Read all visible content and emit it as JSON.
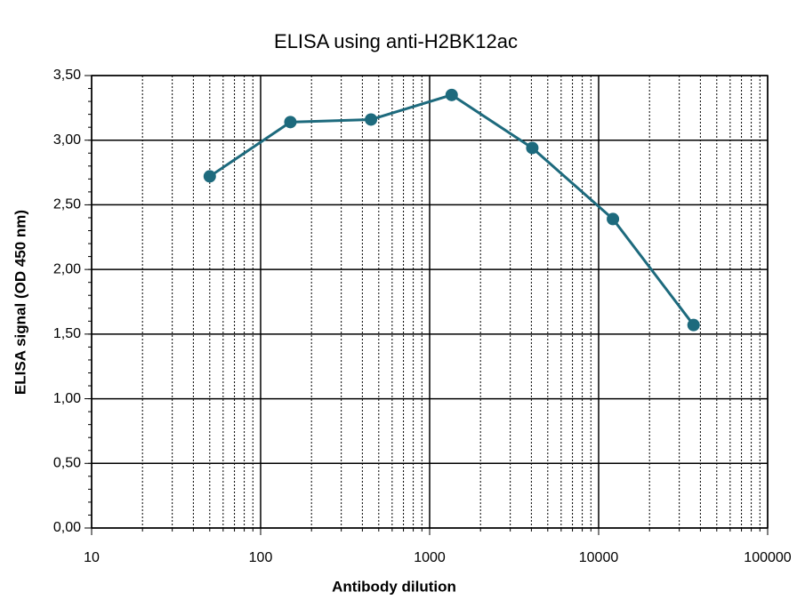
{
  "chart_data": {
    "type": "line",
    "title": "ELISA using anti-H2BK12ac",
    "x_label": "Antibody dilution",
    "y_label": "ELISA signal (OD 450 nm)",
    "x": [
      50,
      150,
      450,
      1350,
      4050,
      12150,
      36450
    ],
    "series": [
      {
        "name": "H2BK12ac",
        "color": "#1d6a7d",
        "values": [
          2.72,
          3.14,
          3.16,
          3.35,
          2.94,
          2.39,
          1.57
        ]
      }
    ],
    "xlim": [
      10,
      100000
    ],
    "xticks": [
      10,
      100,
      1000,
      10000,
      100000
    ],
    "xscale": "log",
    "ylim": [
      0,
      3.5
    ],
    "yticks": [
      {
        "value": 0,
        "label": "0,00"
      },
      {
        "value": 0.5,
        "label": "0,50"
      },
      {
        "value": 1,
        "label": "1,00"
      },
      {
        "value": 1.5,
        "label": "1,50"
      },
      {
        "value": 2,
        "label": "2,00"
      },
      {
        "value": 2.5,
        "label": "2,50"
      },
      {
        "value": 3,
        "label": "3,00"
      },
      {
        "value": 3.5,
        "label": "3,50"
      }
    ],
    "grid": true
  }
}
